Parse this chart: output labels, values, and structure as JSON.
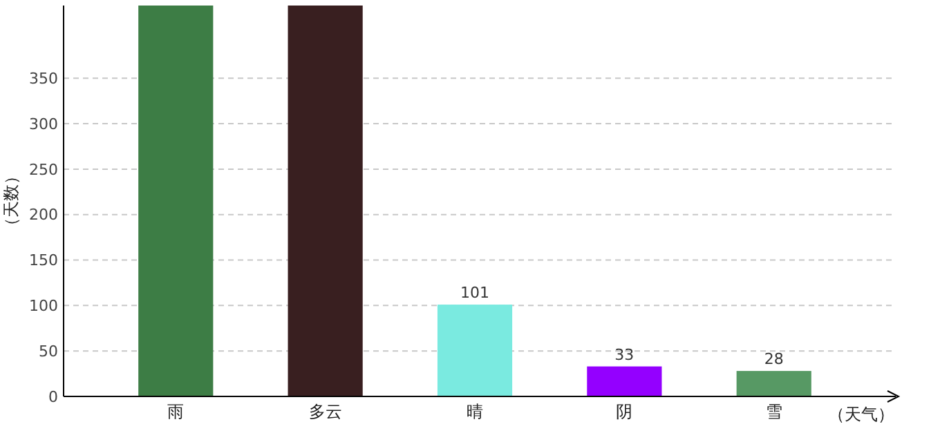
{
  "chart_data": {
    "type": "bar",
    "ylabel": "（天数）",
    "xlabel": "（天气）",
    "categories": [
      "雨",
      "多云",
      "晴",
      "阴",
      "雪"
    ],
    "values": [
      430,
      430,
      101,
      33,
      28
    ],
    "colors": [
      "#3d7d45",
      "#391f20",
      "#7aeae0",
      "#9400ff",
      "#579964"
    ],
    "value_labels": [
      null,
      null,
      "101",
      "33",
      "28"
    ],
    "ylim": [
      0,
      430
    ],
    "yticks": [
      0,
      50,
      100,
      150,
      200,
      250,
      300,
      350
    ],
    "grid": "y"
  }
}
